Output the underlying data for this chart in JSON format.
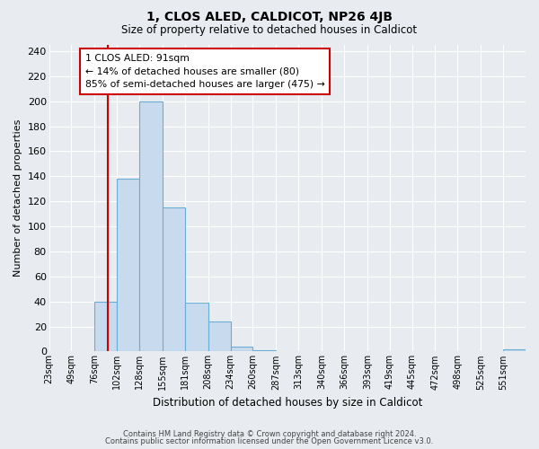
{
  "title": "1, CLOS ALED, CALDICOT, NP26 4JB",
  "subtitle": "Size of property relative to detached houses in Caldicot",
  "xlabel": "Distribution of detached houses by size in Caldicot",
  "ylabel": "Number of detached properties",
  "bar_edges": [
    23,
    49,
    76,
    102,
    128,
    155,
    181,
    208,
    234,
    260,
    287,
    313,
    340,
    366,
    393,
    419,
    445,
    472,
    498,
    525,
    551,
    577
  ],
  "bar_heights": [
    0,
    0,
    40,
    138,
    200,
    115,
    39,
    24,
    4,
    1,
    0,
    0,
    0,
    0,
    0,
    0,
    0,
    0,
    0,
    0,
    2
  ],
  "bar_color": "#c8daed",
  "bar_edge_color": "#6aadd5",
  "property_size": 91,
  "vline_color": "#cc0000",
  "annotation_line1": "1 CLOS ALED: 91sqm",
  "annotation_line2": "← 14% of detached houses are smaller (80)",
  "annotation_line3": "85% of semi-detached houses are larger (475) →",
  "annotation_box_edgecolor": "#cc0000",
  "annotation_box_facecolor": "#ffffff",
  "xlim_left": 23,
  "xlim_right": 577,
  "ylim_top": 245,
  "yticks": [
    0,
    20,
    40,
    60,
    80,
    100,
    120,
    140,
    160,
    180,
    200,
    220,
    240
  ],
  "footer_line1": "Contains HM Land Registry data © Crown copyright and database right 2024.",
  "footer_line2": "Contains public sector information licensed under the Open Government Licence v3.0.",
  "background_color": "#e8ecf0",
  "plot_bg_color": "#e8ecf0",
  "grid_color": "#ffffff",
  "tick_labels": [
    "23sqm",
    "49sqm",
    "76sqm",
    "102sqm",
    "128sqm",
    "155sqm",
    "181sqm",
    "208sqm",
    "234sqm",
    "260sqm",
    "287sqm",
    "313sqm",
    "340sqm",
    "366sqm",
    "393sqm",
    "419sqm",
    "445sqm",
    "472sqm",
    "498sqm",
    "525sqm",
    "551sqm"
  ]
}
